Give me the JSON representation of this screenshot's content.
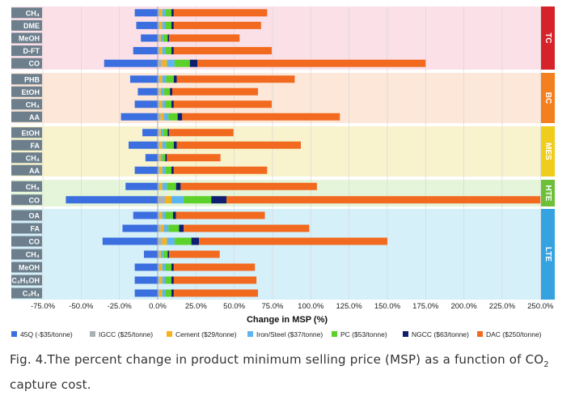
{
  "chart_data": {
    "type": "bar",
    "stacked": true,
    "orientation": "horizontal",
    "xlabel": "Change in MSP (%)",
    "xlim": [
      -75,
      250
    ],
    "xticks": [
      "-75.0%",
      "-50.0%",
      "-25.0%",
      "0.0%",
      "25.0%",
      "50.0%",
      "75.0%",
      "100.0%",
      "125.0%",
      "150.0%",
      "175.0%",
      "200.0%",
      "225.0%",
      "250.0%"
    ],
    "grid": true,
    "legend_position": "bottom",
    "colors": {
      "45Q": "#3b6fe0",
      "IGCC": "#a9b1b4",
      "Cement": "#f6b21b",
      "Iron/Steel": "#5db4ef",
      "PC": "#5cd12a",
      "NGCC": "#0d1f6e",
      "DAC": "#f26a1f"
    },
    "legend": [
      {
        "key": "45Q",
        "label": "45Q (-$35/tonne)"
      },
      {
        "key": "IGCC",
        "label": "IGCC ($25/tonne)"
      },
      {
        "key": "Cement",
        "label": "Cement ($29/tonne)"
      },
      {
        "key": "Iron/Steel",
        "label": "Iron/Steel ($37/tonne)"
      },
      {
        "key": "PC",
        "label": "PC ($53/tonne)"
      },
      {
        "key": "NGCC",
        "label": "NGCC ($63/tonne)"
      },
      {
        "key": "DAC",
        "label": "DAC ($250/tonne)"
      }
    ],
    "groups": [
      {
        "name": "TC",
        "band_color": "#fbe0e8",
        "tab_color": "#d6232a",
        "rows": [
          {
            "label": "CH₄",
            "v": {
              "45Q": -15,
              "IGCC": 1.5,
              "Cement": 1.5,
              "Iron/Steel": 2,
              "PC": 4,
              "NGCC": 1.5,
              "DAC": 61
            }
          },
          {
            "label": "DME",
            "v": {
              "45Q": -14,
              "IGCC": 1.5,
              "Cement": 1.5,
              "Iron/Steel": 2,
              "PC": 4,
              "NGCC": 1.5,
              "DAC": 57
            }
          },
          {
            "label": "MeOH",
            "v": {
              "45Q": -11,
              "IGCC": 1,
              "Cement": 1,
              "Iron/Steel": 1.5,
              "PC": 3,
              "NGCC": 1,
              "DAC": 46
            }
          },
          {
            "label": "D-FT",
            "v": {
              "45Q": -16,
              "IGCC": 1.5,
              "Cement": 1.5,
              "Iron/Steel": 2,
              "PC": 4,
              "NGCC": 1.5,
              "DAC": 64
            }
          },
          {
            "label": "CO",
            "v": {
              "45Q": -35,
              "IGCC": 3,
              "Cement": 3,
              "Iron/Steel": 5,
              "PC": 10,
              "NGCC": 5,
              "DAC": 149
            }
          }
        ]
      },
      {
        "name": "BC",
        "band_color": "#fce7d8",
        "tab_color": "#f47f1e",
        "rows": [
          {
            "label": "PHB",
            "v": {
              "45Q": -18,
              "IGCC": 1.5,
              "Cement": 1.5,
              "Iron/Steel": 2.5,
              "PC": 5,
              "NGCC": 2,
              "DAC": 77
            }
          },
          {
            "label": "EtOH",
            "v": {
              "45Q": -13,
              "IGCC": 1,
              "Cement": 1,
              "Iron/Steel": 2,
              "PC": 4,
              "NGCC": 1.5,
              "DAC": 56
            }
          },
          {
            "label": "CH₄",
            "v": {
              "45Q": -15,
              "IGCC": 1.5,
              "Cement": 1.5,
              "Iron/Steel": 2,
              "PC": 4,
              "NGCC": 1.5,
              "DAC": 64
            }
          },
          {
            "label": "AA",
            "v": {
              "45Q": -24,
              "IGCC": 2,
              "Cement": 2,
              "Iron/Steel": 3,
              "PC": 6,
              "NGCC": 3,
              "DAC": 103
            }
          }
        ]
      },
      {
        "name": "MES",
        "band_color": "#f8f3cd",
        "tab_color": "#f0cc1c",
        "rows": [
          {
            "label": "EtOH",
            "v": {
              "45Q": -10,
              "IGCC": 1,
              "Cement": 1,
              "Iron/Steel": 1.5,
              "PC": 3,
              "NGCC": 1,
              "DAC": 42
            }
          },
          {
            "label": "FA",
            "v": {
              "45Q": -19,
              "IGCC": 1.5,
              "Cement": 1.5,
              "Iron/Steel": 2.5,
              "PC": 5,
              "NGCC": 2,
              "DAC": 81
            }
          },
          {
            "label": "CH₄",
            "v": {
              "45Q": -8,
              "IGCC": 1,
              "Cement": 1,
              "Iron/Steel": 1,
              "PC": 2,
              "NGCC": 1,
              "DAC": 35
            }
          },
          {
            "label": "AA",
            "v": {
              "45Q": -15,
              "IGCC": 1.5,
              "Cement": 1.5,
              "Iron/Steel": 2,
              "PC": 4,
              "NGCC": 1.5,
              "DAC": 61
            }
          }
        ]
      },
      {
        "name": "HTE",
        "band_color": "#e5f5d9",
        "tab_color": "#6dbf3a",
        "rows": [
          {
            "label": "CH₄",
            "v": {
              "45Q": -21,
              "IGCC": 1.5,
              "Cement": 1.5,
              "Iron/Steel": 3,
              "PC": 6,
              "NGCC": 3,
              "DAC": 89
            }
          },
          {
            "label": "CO",
            "v": {
              "45Q": -60,
              "IGCC": 5,
              "Cement": 4,
              "Iron/Steel": 8,
              "PC": 18,
              "NGCC": 10,
              "DAC": 205
            }
          }
        ]
      },
      {
        "name": "LTE",
        "band_color": "#d6f0f9",
        "tab_color": "#34a3e0",
        "rows": [
          {
            "label": "OA",
            "v": {
              "45Q": -16,
              "IGCC": 1.5,
              "Cement": 1.5,
              "Iron/Steel": 2,
              "PC": 5,
              "NGCC": 2,
              "DAC": 58
            }
          },
          {
            "label": "FA",
            "v": {
              "45Q": -23,
              "IGCC": 2,
              "Cement": 2,
              "Iron/Steel": 3,
              "PC": 7,
              "NGCC": 3,
              "DAC": 82
            }
          },
          {
            "label": "CO",
            "v": {
              "45Q": -36,
              "IGCC": 3,
              "Cement": 3,
              "Iron/Steel": 5,
              "PC": 11,
              "NGCC": 5,
              "DAC": 123
            }
          },
          {
            "label": "CH₄",
            "v": {
              "45Q": -9,
              "IGCC": 1,
              "Cement": 1,
              "Iron/Steel": 1.5,
              "PC": 3,
              "NGCC": 1,
              "DAC": 33
            }
          },
          {
            "label": "MeOH",
            "v": {
              "45Q": -15,
              "IGCC": 1.5,
              "Cement": 1.5,
              "Iron/Steel": 2,
              "PC": 4,
              "NGCC": 1.5,
              "DAC": 53
            }
          },
          {
            "label": "C₂H₅OH",
            "v": {
              "45Q": -15,
              "IGCC": 1.5,
              "Cement": 1.5,
              "Iron/Steel": 2,
              "PC": 4,
              "NGCC": 1.5,
              "DAC": 54
            }
          },
          {
            "label": "C₂H₄",
            "v": {
              "45Q": -15,
              "IGCC": 1.5,
              "Cement": 1.5,
              "Iron/Steel": 2,
              "PC": 4,
              "NGCC": 1.5,
              "DAC": 55
            }
          }
        ]
      }
    ]
  },
  "caption": {
    "prefix": "Fig. 4.The percent change in product minimum selling price (MSP) as a function of CO",
    "sub": "2",
    "suffix": " capture cost."
  }
}
